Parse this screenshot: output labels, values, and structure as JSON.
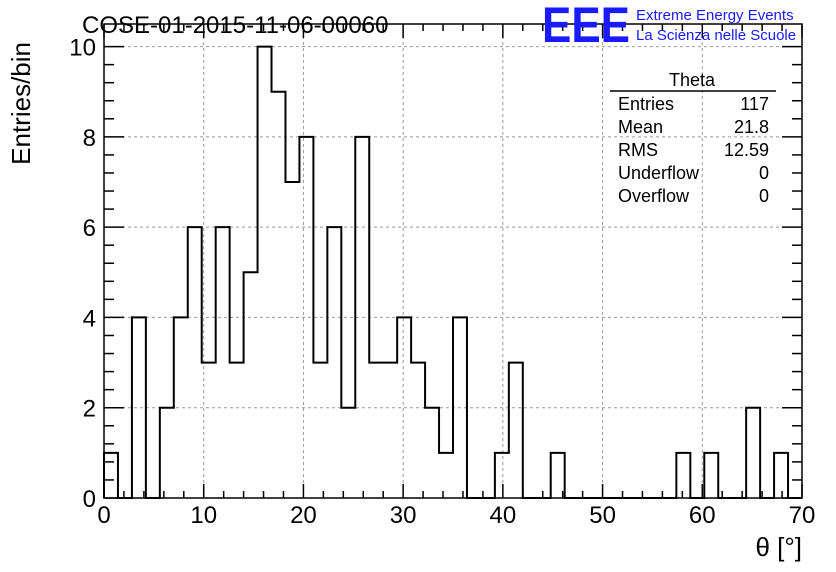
{
  "chart_data": {
    "type": "bar",
    "title": "COSE-01-2015-11-06-00060",
    "xlabel": "θ [°]",
    "ylabel": "Entries/bin",
    "xlim": [
      0,
      70
    ],
    "ylim": [
      0,
      10.5
    ],
    "bin_width": 1.4,
    "grid": true,
    "x_ticks": [
      "0",
      "10",
      "20",
      "30",
      "40",
      "50",
      "60",
      "70"
    ],
    "y_ticks": [
      "0",
      "2",
      "4",
      "6",
      "8",
      "10"
    ],
    "values": [
      1,
      0,
      4,
      0,
      2,
      4,
      6,
      3,
      6,
      3,
      5,
      10,
      9,
      7,
      8,
      3,
      6,
      2,
      8,
      3,
      3,
      4,
      3,
      2,
      1,
      4,
      0,
      0,
      1,
      3,
      0,
      0,
      1,
      0,
      0,
      0,
      0,
      0,
      0,
      0,
      0,
      1,
      0,
      1,
      0,
      0,
      2,
      0,
      1,
      0
    ]
  },
  "stats_box": {
    "title": "Theta",
    "rows": [
      {
        "label": "Entries",
        "value": "117"
      },
      {
        "label": "Mean",
        "value": "21.8"
      },
      {
        "label": "RMS",
        "value": "12.59"
      },
      {
        "label": "Underflow",
        "value": "0"
      },
      {
        "label": "Overflow",
        "value": "0"
      }
    ]
  },
  "logo": {
    "letters": "EEE",
    "line1": "Extreme Energy Events",
    "line2": "La Scienza nelle Scuole",
    "color": "#1a1aff"
  }
}
